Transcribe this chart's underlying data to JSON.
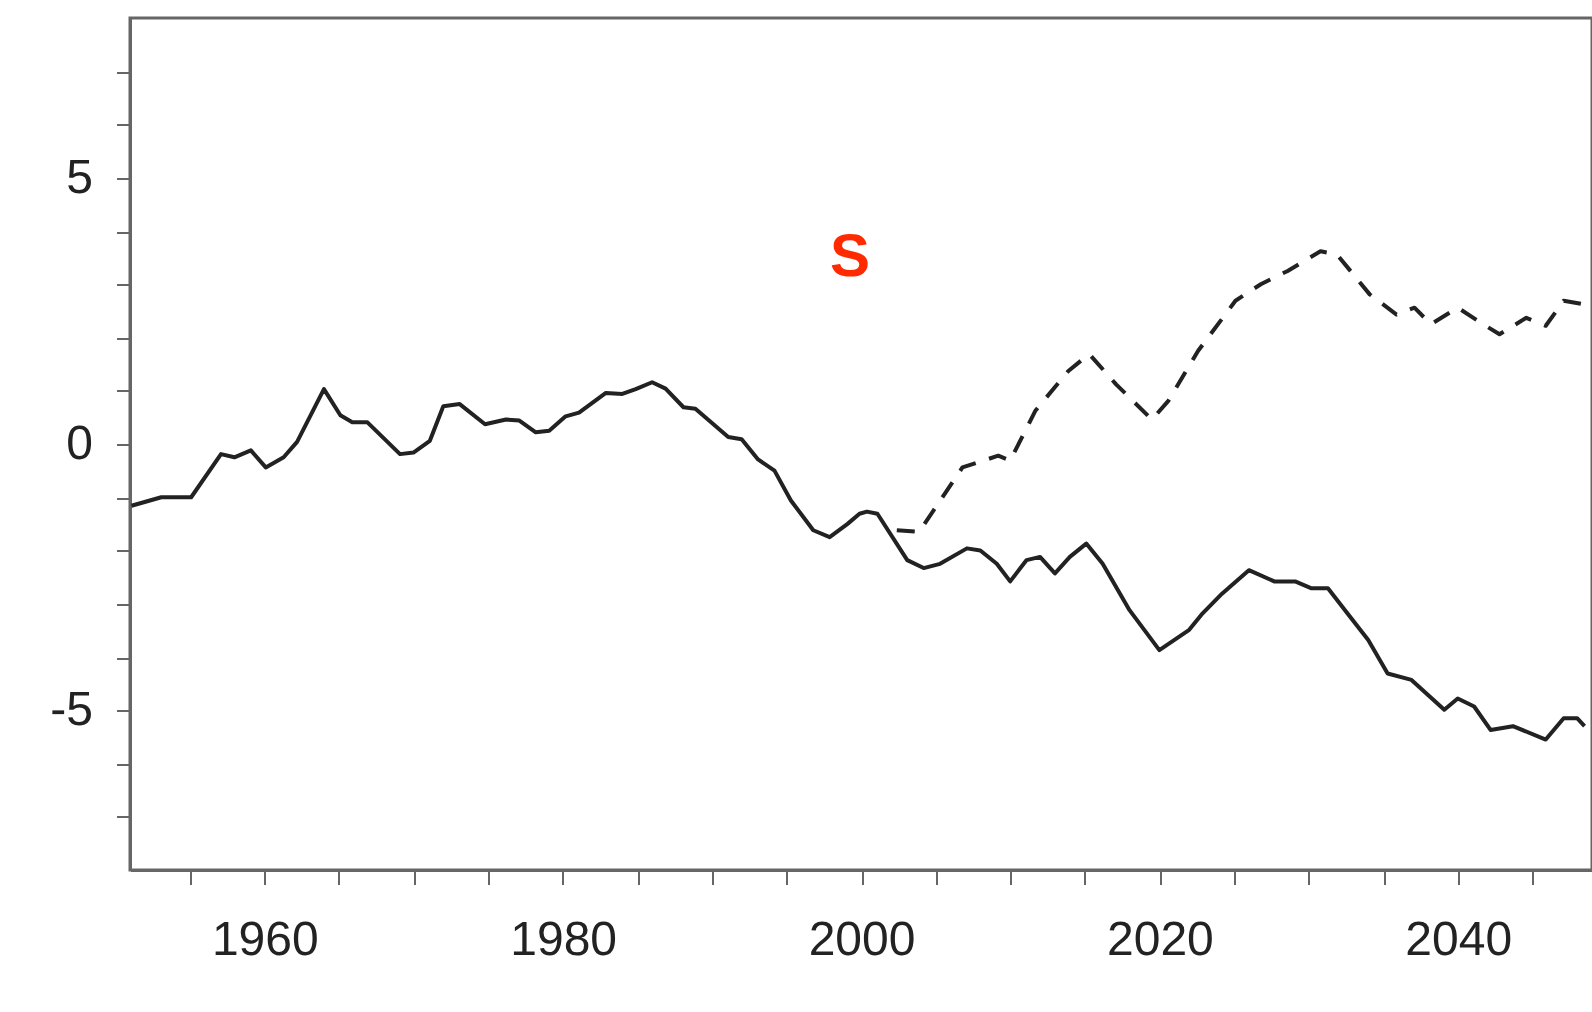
{
  "chart_data": {
    "type": "line",
    "annotations": [
      "S"
    ],
    "xlim": [
      1951,
      2049
    ],
    "ylim": [
      -8,
      8
    ],
    "xticks": [
      {
        "value": 1955,
        "label": null
      },
      1960,
      {
        "value": 1965,
        "label": null
      },
      {
        "value": 1970,
        "label": null
      },
      {
        "value": 1975,
        "label": null
      },
      1980,
      {
        "value": 1985,
        "label": null
      },
      {
        "value": 1990,
        "label": null
      },
      {
        "value": 1995,
        "label": null
      },
      2000,
      {
        "value": 2005,
        "label": null
      },
      {
        "value": 2010,
        "label": null
      },
      {
        "value": 2015,
        "label": null
      },
      2020,
      {
        "value": 2025,
        "label": null
      },
      {
        "value": 2030,
        "label": null
      },
      {
        "value": 2035,
        "label": null
      },
      2040,
      {
        "value": 2045,
        "label": null
      }
    ],
    "yticks": [
      {
        "value": -7,
        "label": null
      },
      {
        "value": -6,
        "label": null
      },
      -5,
      {
        "value": -4,
        "label": null
      },
      {
        "value": -3,
        "label": null
      },
      {
        "value": -2,
        "label": null
      },
      {
        "value": -1,
        "label": null
      },
      0,
      {
        "value": 1,
        "label": null
      },
      {
        "value": 2,
        "label": null
      },
      {
        "value": 3,
        "label": null
      },
      {
        "value": 4,
        "label": null
      },
      5,
      {
        "value": 6,
        "label": null
      },
      {
        "value": 7,
        "label": null
      }
    ],
    "grid": false,
    "marker": "none",
    "series": [
      {
        "color": "#222222",
        "line_style": "solid",
        "x": [
          1951.1,
          1953.1,
          1955.1,
          1957.1,
          1958.0,
          1959.1,
          1960.1,
          1961.3,
          1962.2,
          1964.0,
          1965.1,
          1965.9,
          1966.9,
          1969.1,
          1970.0,
          1971.1,
          1972.0,
          1973.1,
          1974.8,
          1976.2,
          1977.1,
          1978.2,
          1979.1,
          1980.2,
          1981.1,
          1982.9,
          1984.0,
          1984.9,
          1986.0,
          1986.9,
          1988.1,
          1988.9,
          1991.1,
          1992.0,
          1993.1,
          1994.2,
          1995.3,
          1996.8,
          1997.9,
          1999.1,
          1999.9,
          2000.4,
          2001.1,
          2003.1,
          2004.2,
          2005.3,
          2007.1,
          2008.0,
          2009.1,
          2010.0,
          2011.1,
          2012.0,
          2013.0,
          2014.0,
          2015.1,
          2016.2,
          2018.0,
          2020.0,
          2022.0,
          2022.9,
          2024.2,
          2026.0,
          2027.7,
          2029.1,
          2030.2,
          2031.3,
          2032.6,
          2034.0,
          2035.3,
          2036.9,
          2039.1,
          2040.0,
          2041.1,
          2042.2,
          2043.7,
          2045.9,
          2047.1,
          2048.0,
          2048.5
        ],
        "values": [
          -1.16,
          -1.0,
          -1.0,
          -0.19,
          -0.25,
          -0.12,
          -0.44,
          -0.25,
          0.04,
          1.03,
          0.54,
          0.41,
          0.41,
          -0.19,
          -0.16,
          0.06,
          0.71,
          0.75,
          0.37,
          0.46,
          0.44,
          0.22,
          0.25,
          0.52,
          0.59,
          0.96,
          0.94,
          1.03,
          1.16,
          1.04,
          0.69,
          0.66,
          0.13,
          0.09,
          -0.29,
          -0.5,
          -1.06,
          -1.62,
          -1.75,
          -1.5,
          -1.31,
          -1.27,
          -1.31,
          -2.18,
          -2.33,
          -2.25,
          -1.96,
          -2.0,
          -2.25,
          -2.58,
          -2.18,
          -2.12,
          -2.43,
          -2.12,
          -1.87,
          -2.25,
          -3.12,
          -3.87,
          -3.49,
          -3.18,
          -2.81,
          -2.37,
          -2.58,
          -2.58,
          -2.71,
          -2.71,
          -3.18,
          -3.68,
          -4.31,
          -4.43,
          -4.99,
          -4.78,
          -4.93,
          -5.37,
          -5.3,
          -5.55,
          -5.15,
          -5.15,
          -5.3
        ]
      },
      {
        "color": "#222222",
        "line_style": "dashed",
        "x": [
          2002.4,
          2003.9,
          2006.8,
          2009.2,
          2010.0,
          2011.7,
          2013.9,
          2015.3,
          2017.1,
          2019.5,
          2020.6,
          2022.6,
          2025.1,
          2026.8,
          2028.6,
          2030.8,
          2031.9,
          2034.1,
          2035.9,
          2037.1,
          2038.2,
          2040.0,
          2041.7,
          2042.8,
          2044.6,
          2045.9,
          2047.1,
          2048.5
        ],
        "values": [
          -1.62,
          -1.65,
          -0.44,
          -0.22,
          -0.31,
          0.63,
          1.37,
          1.69,
          1.12,
          0.46,
          0.81,
          1.75,
          2.69,
          3.0,
          3.25,
          3.62,
          3.56,
          2.81,
          2.43,
          2.56,
          2.25,
          2.56,
          2.25,
          2.06,
          2.37,
          2.22,
          2.69,
          2.62
        ]
      }
    ]
  }
}
